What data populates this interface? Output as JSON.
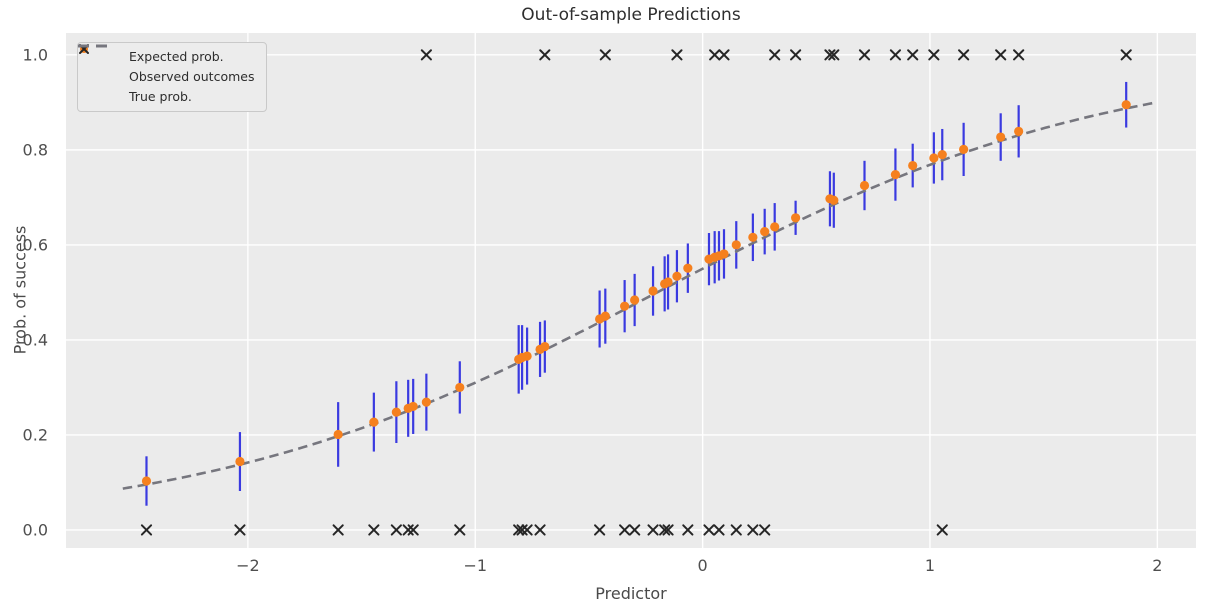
{
  "chart_data": {
    "type": "scatter",
    "title": "Out-of-sample Predictions",
    "xlabel": "Predictor",
    "ylabel": "Prob. of success",
    "grid": true,
    "xlim": [
      -2.8,
      2.17
    ],
    "ylim": [
      -0.038,
      1.046
    ],
    "x_ticks": [
      {
        "value": -2,
        "label": "−2"
      },
      {
        "value": -1,
        "label": "−1"
      },
      {
        "value": 0,
        "label": "0"
      },
      {
        "value": 1,
        "label": "1"
      },
      {
        "value": 2,
        "label": "2"
      }
    ],
    "y_ticks": [
      {
        "value": 0.0,
        "label": "0.0"
      },
      {
        "value": 0.2,
        "label": "0.2"
      },
      {
        "value": 0.4,
        "label": "0.4"
      },
      {
        "value": 0.6,
        "label": "0.6"
      },
      {
        "value": 0.8,
        "label": "0.8"
      },
      {
        "value": 1.0,
        "label": "1.0"
      }
    ],
    "legend": {
      "position": "upper-left",
      "entries": [
        {
          "label": "Expected prob.",
          "marker": "dot"
        },
        {
          "label": "Observed outcomes",
          "marker": "x"
        },
        {
          "label": "True prob.",
          "marker": "dash"
        }
      ]
    },
    "colors": {
      "expected": "#f5801e",
      "error_bar": "#3a3ae0",
      "observed": "#262626",
      "true_line": "#76767e",
      "plot_bg": "#ebebeb",
      "grid": "#ffffff",
      "figure_bg": "#ffffff",
      "legend_bg": "#ececec",
      "legend_border": "#c9c9c9"
    },
    "true_prob": {
      "model": "logistic",
      "intercept": 0.2,
      "slope": 1.0,
      "x_range": [
        -2.55,
        2.0
      ],
      "style": "dashed"
    },
    "points": [
      {
        "x": -2.446,
        "expected": 0.103,
        "err": 0.052,
        "observed": 0
      },
      {
        "x": -2.035,
        "expected": 0.144,
        "err": 0.062,
        "observed": 0
      },
      {
        "x": -1.603,
        "expected": 0.201,
        "err": 0.068,
        "observed": 0
      },
      {
        "x": -1.446,
        "expected": 0.227,
        "err": 0.062,
        "observed": 0
      },
      {
        "x": -1.347,
        "expected": 0.248,
        "err": 0.065,
        "observed": 0
      },
      {
        "x": -1.295,
        "expected": 0.256,
        "err": 0.06,
        "observed": 0
      },
      {
        "x": -1.273,
        "expected": 0.26,
        "err": 0.058,
        "observed": 0
      },
      {
        "x": -1.215,
        "expected": 0.269,
        "err": 0.06,
        "observed": 1
      },
      {
        "x": -1.068,
        "expected": 0.3,
        "err": 0.055,
        "observed": 0
      },
      {
        "x": -0.809,
        "expected": 0.359,
        "err": 0.072,
        "observed": 0
      },
      {
        "x": -0.794,
        "expected": 0.363,
        "err": 0.068,
        "observed": 0
      },
      {
        "x": -0.772,
        "expected": 0.366,
        "err": 0.06,
        "observed": 0
      },
      {
        "x": -0.715,
        "expected": 0.38,
        "err": 0.058,
        "observed": 0
      },
      {
        "x": -0.694,
        "expected": 0.386,
        "err": 0.055,
        "observed": 1
      },
      {
        "x": -0.453,
        "expected": 0.444,
        "err": 0.06,
        "observed": 0
      },
      {
        "x": -0.428,
        "expected": 0.45,
        "err": 0.058,
        "observed": 1
      },
      {
        "x": -0.343,
        "expected": 0.471,
        "err": 0.055,
        "observed": 0
      },
      {
        "x": -0.299,
        "expected": 0.484,
        "err": 0.055,
        "observed": 0
      },
      {
        "x": -0.218,
        "expected": 0.503,
        "err": 0.052,
        "observed": 0
      },
      {
        "x": -0.167,
        "expected": 0.518,
        "err": 0.058,
        "observed": 0
      },
      {
        "x": -0.152,
        "expected": 0.522,
        "err": 0.058,
        "observed": 0
      },
      {
        "x": -0.113,
        "expected": 0.534,
        "err": 0.055,
        "observed": 1
      },
      {
        "x": -0.065,
        "expected": 0.551,
        "err": 0.052,
        "observed": 0
      },
      {
        "x": 0.028,
        "expected": 0.57,
        "err": 0.055,
        "observed": 0
      },
      {
        "x": 0.053,
        "expected": 0.574,
        "err": 0.055,
        "observed": 1
      },
      {
        "x": 0.072,
        "expected": 0.577,
        "err": 0.052,
        "observed": 0
      },
      {
        "x": 0.094,
        "expected": 0.581,
        "err": 0.052,
        "observed": 1
      },
      {
        "x": 0.148,
        "expected": 0.6,
        "err": 0.05,
        "observed": 0
      },
      {
        "x": 0.221,
        "expected": 0.616,
        "err": 0.05,
        "observed": 0
      },
      {
        "x": 0.273,
        "expected": 0.628,
        "err": 0.048,
        "observed": 0
      },
      {
        "x": 0.317,
        "expected": 0.638,
        "err": 0.05,
        "observed": 1
      },
      {
        "x": 0.409,
        "expected": 0.657,
        "err": 0.036,
        "observed": 1
      },
      {
        "x": 0.56,
        "expected": 0.697,
        "err": 0.058,
        "observed": 1
      },
      {
        "x": 0.577,
        "expected": 0.694,
        "err": 0.058,
        "observed": 1
      },
      {
        "x": 0.712,
        "expected": 0.725,
        "err": 0.052,
        "observed": 1
      },
      {
        "x": 0.848,
        "expected": 0.748,
        "err": 0.055,
        "observed": 1
      },
      {
        "x": 0.924,
        "expected": 0.767,
        "err": 0.046,
        "observed": 1
      },
      {
        "x": 1.017,
        "expected": 0.783,
        "err": 0.054,
        "observed": 1
      },
      {
        "x": 1.054,
        "expected": 0.79,
        "err": 0.054,
        "observed": 0
      },
      {
        "x": 1.148,
        "expected": 0.801,
        "err": 0.056,
        "observed": 1
      },
      {
        "x": 1.311,
        "expected": 0.827,
        "err": 0.05,
        "observed": 1
      },
      {
        "x": 1.39,
        "expected": 0.839,
        "err": 0.055,
        "observed": 1
      },
      {
        "x": 1.863,
        "expected": 0.895,
        "err": 0.048,
        "observed": 1
      }
    ]
  }
}
